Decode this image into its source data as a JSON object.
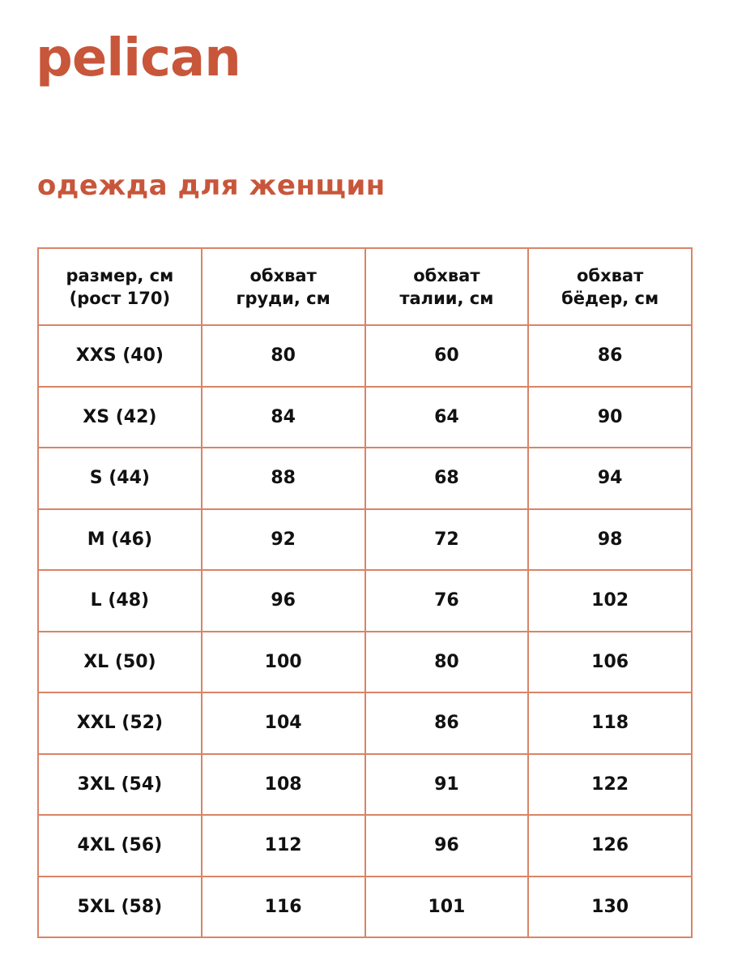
{
  "brand": {
    "logo_text": "pelican",
    "color": "#c8563a"
  },
  "subtitle": "одежда для женщин",
  "table": {
    "border_color": "#d98466",
    "headers": [
      [
        "размер, см",
        "(рост 170)"
      ],
      [
        "обхват",
        "груди, см"
      ],
      [
        "обхват",
        "талии, см"
      ],
      [
        "обхват",
        "бёдер, см"
      ]
    ],
    "rows": [
      [
        "XXS (40)",
        "80",
        "60",
        "86"
      ],
      [
        "XS (42)",
        "84",
        "64",
        "90"
      ],
      [
        "S (44)",
        "88",
        "68",
        "94"
      ],
      [
        "M (46)",
        "92",
        "72",
        "98"
      ],
      [
        "L (48)",
        "96",
        "76",
        "102"
      ],
      [
        "XL (50)",
        "100",
        "80",
        "106"
      ],
      [
        "XXL (52)",
        "104",
        "86",
        "118"
      ],
      [
        "3XL (54)",
        "108",
        "91",
        "122"
      ],
      [
        "4XL (56)",
        "112",
        "96",
        "126"
      ],
      [
        "5XL (58)",
        "116",
        "101",
        "130"
      ]
    ]
  }
}
